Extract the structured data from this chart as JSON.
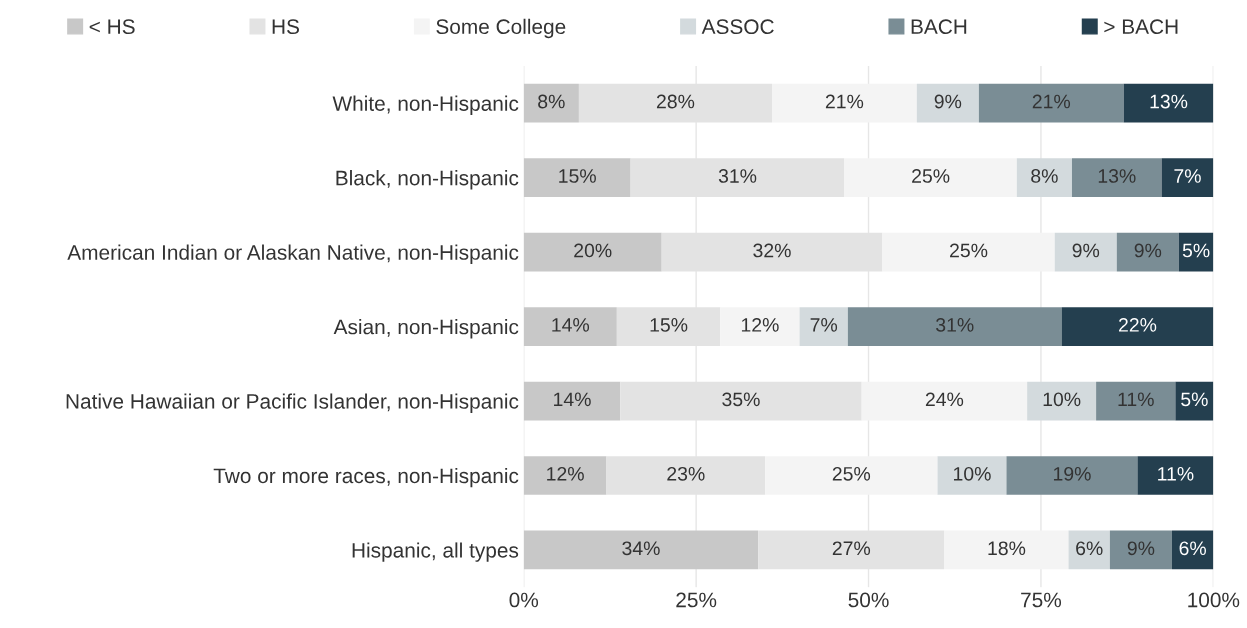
{
  "chart_data": {
    "type": "bar",
    "orientation": "horizontal",
    "stacked": true,
    "categories": [
      "White, non-Hispanic",
      "Black, non-Hispanic",
      "American Indian or Alaskan Native, non-Hispanic",
      "Asian, non-Hispanic",
      "Native Hawaiian or Pacific Islander, non-Hispanic",
      "Two or more races, non-Hispanic",
      "Hispanic, all types"
    ],
    "series": [
      {
        "name": "< HS",
        "color": "#c8c8c8",
        "values": [
          8,
          15.5,
          20,
          13.5,
          14,
          12,
          34
        ],
        "value_labels": [
          "8%",
          "15%",
          "20%",
          "14%",
          "14%",
          "12%",
          "34%"
        ]
      },
      {
        "name": "HS",
        "color": "#e3e3e3",
        "values": [
          28,
          31,
          32,
          15,
          35,
          23,
          27
        ],
        "value_labels": [
          "28%",
          "31%",
          "32%",
          "15%",
          "35%",
          "23%",
          "27%"
        ]
      },
      {
        "name": "Some College",
        "color": "#f4f4f4",
        "values": [
          21,
          25,
          25,
          11.5,
          24,
          25,
          18
        ],
        "value_labels": [
          "21%",
          "25%",
          "25%",
          "12%",
          "24%",
          "25%",
          "18%"
        ]
      },
      {
        "name": "ASSOC",
        "color": "#d3dadd",
        "values": [
          9,
          8,
          9,
          7,
          10,
          10,
          6
        ],
        "value_labels": [
          "9%",
          "8%",
          "9%",
          "7%",
          "10%",
          "10%",
          "6%"
        ]
      },
      {
        "name": "BACH",
        "color": "#7a8d95",
        "values": [
          21,
          13,
          9,
          31,
          11.5,
          19,
          9
        ],
        "value_labels": [
          "21%",
          "13%",
          "9%",
          "31%",
          "11%",
          "19%",
          "9%"
        ]
      },
      {
        "name": "> BACH",
        "color": "#243f4f",
        "values": [
          13,
          7.5,
          5,
          22,
          5.5,
          11,
          6
        ],
        "value_labels": [
          "13%",
          "7%",
          "5%",
          "22%",
          "5%",
          "11%",
          "6%"
        ]
      }
    ],
    "xlim": [
      0,
      100
    ],
    "xticks": [
      {
        "value": 0,
        "label": "0%"
      },
      {
        "value": 25,
        "label": "25%"
      },
      {
        "value": 50,
        "label": "50%"
      },
      {
        "value": 75,
        "label": "75%"
      },
      {
        "value": 100,
        "label": "100%"
      }
    ],
    "grid": "x",
    "legend": "top"
  }
}
